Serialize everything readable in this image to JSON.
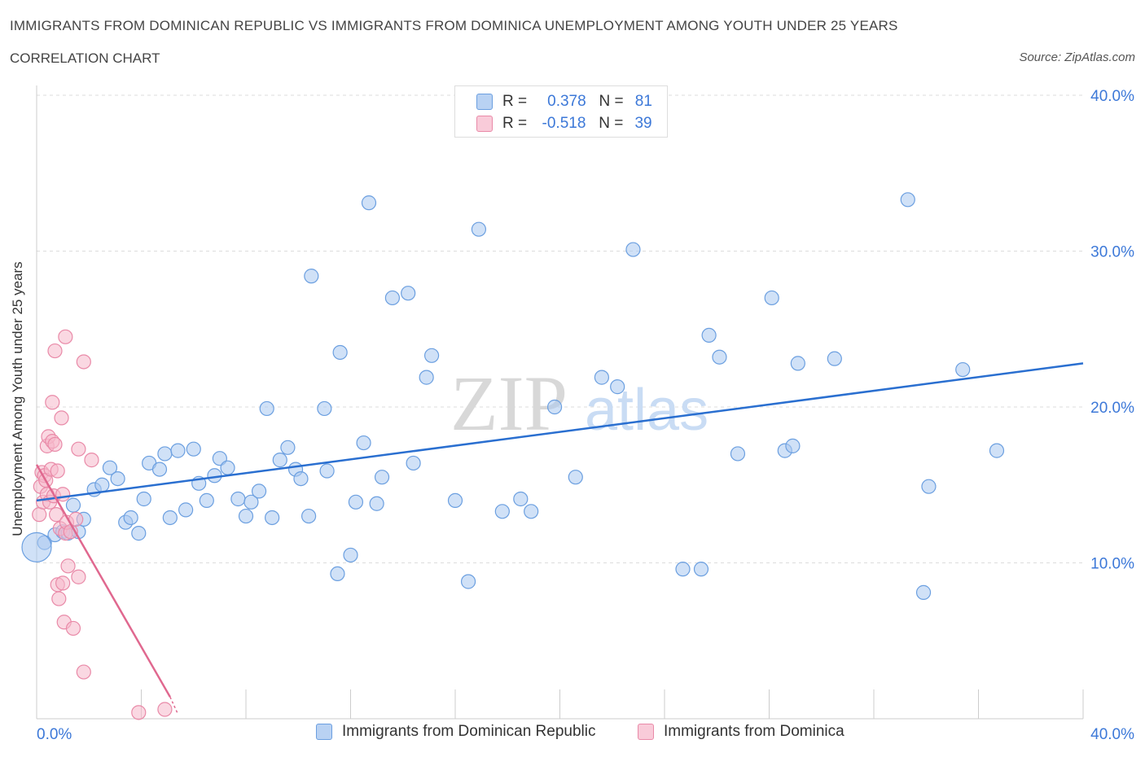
{
  "header": {
    "title": "IMMIGRANTS FROM DOMINICAN REPUBLIC VS IMMIGRANTS FROM DOMINICA UNEMPLOYMENT AMONG YOUTH UNDER 25 YEARS",
    "subtitle": "CORRELATION CHART",
    "source": "Source: ZipAtlas.com"
  },
  "watermark": {
    "zip": "ZIP",
    "atlas": "atlas"
  },
  "legend": {
    "series1": {
      "r_label": "R =",
      "r_value": "0.378",
      "n_label": "N =",
      "n_value": "81"
    },
    "series2": {
      "r_label": "R =",
      "r_value": "-0.518",
      "n_label": "N =",
      "n_value": "39"
    }
  },
  "colors": {
    "blue_fill": "#a9c8f0",
    "blue_stroke": "#6b9fe0",
    "blue_line": "#2a6fd0",
    "pink_fill": "#f6b8cb",
    "pink_stroke": "#e98aa8",
    "pink_line": "#e0688f",
    "axis_text": "#3c78d8"
  },
  "chart_data": {
    "type": "scatter",
    "title": "IMMIGRANTS FROM DOMINICAN REPUBLIC VS IMMIGRANTS FROM DOMINICA UNEMPLOYMENT AMONG YOUTH UNDER 25 YEARS",
    "xlabel": "",
    "ylabel": "Unemployment Among Youth under 25 years",
    "xlim": [
      0,
      40
    ],
    "ylim": [
      0,
      40
    ],
    "x_tick_labels": [
      "0.0%",
      "40.0%"
    ],
    "y_ticks": [
      10,
      20,
      30,
      40
    ],
    "y_tick_labels": [
      "10.0%",
      "20.0%",
      "30.0%",
      "40.0%"
    ],
    "grid": true,
    "series": [
      {
        "name": "Immigrants from Dominican Republic",
        "color": "#a9c8f0",
        "trend": {
          "x": [
            0,
            40
          ],
          "y": [
            14.0,
            22.8
          ]
        },
        "points": [
          {
            "x": 0.3,
            "y": 11.3
          },
          {
            "x": 0.7,
            "y": 11.8
          },
          {
            "x": 1.0,
            "y": 12.0
          },
          {
            "x": 1.2,
            "y": 11.9
          },
          {
            "x": 1.4,
            "y": 13.7
          },
          {
            "x": 1.6,
            "y": 12.0
          },
          {
            "x": 1.8,
            "y": 12.8
          },
          {
            "x": 2.2,
            "y": 14.7
          },
          {
            "x": 2.5,
            "y": 15.0
          },
          {
            "x": 2.8,
            "y": 16.1
          },
          {
            "x": 3.1,
            "y": 15.4
          },
          {
            "x": 3.4,
            "y": 12.6
          },
          {
            "x": 3.6,
            "y": 12.9
          },
          {
            "x": 3.9,
            "y": 11.9
          },
          {
            "x": 4.1,
            "y": 14.1
          },
          {
            "x": 4.3,
            "y": 16.4
          },
          {
            "x": 4.7,
            "y": 16.0
          },
          {
            "x": 4.9,
            "y": 17.0
          },
          {
            "x": 5.1,
            "y": 12.9
          },
          {
            "x": 5.4,
            "y": 17.2
          },
          {
            "x": 5.7,
            "y": 13.4
          },
          {
            "x": 6.0,
            "y": 17.3
          },
          {
            "x": 6.2,
            "y": 15.1
          },
          {
            "x": 6.5,
            "y": 14.0
          },
          {
            "x": 6.8,
            "y": 15.6
          },
          {
            "x": 7.0,
            "y": 16.7
          },
          {
            "x": 7.3,
            "y": 16.1
          },
          {
            "x": 7.7,
            "y": 14.1
          },
          {
            "x": 8.0,
            "y": 13.0
          },
          {
            "x": 8.2,
            "y": 13.9
          },
          {
            "x": 8.5,
            "y": 14.6
          },
          {
            "x": 8.8,
            "y": 19.9
          },
          {
            "x": 9.0,
            "y": 12.9
          },
          {
            "x": 9.3,
            "y": 16.6
          },
          {
            "x": 9.6,
            "y": 17.4
          },
          {
            "x": 9.9,
            "y": 16.0
          },
          {
            "x": 10.1,
            "y": 15.4
          },
          {
            "x": 10.4,
            "y": 13.0
          },
          {
            "x": 10.5,
            "y": 28.4
          },
          {
            "x": 11.0,
            "y": 19.9
          },
          {
            "x": 11.1,
            "y": 15.9
          },
          {
            "x": 11.5,
            "y": 9.3
          },
          {
            "x": 11.6,
            "y": 23.5
          },
          {
            "x": 12.0,
            "y": 10.5
          },
          {
            "x": 12.2,
            "y": 13.9
          },
          {
            "x": 12.5,
            "y": 17.7
          },
          {
            "x": 12.7,
            "y": 33.1
          },
          {
            "x": 13.0,
            "y": 13.8
          },
          {
            "x": 13.2,
            "y": 15.5
          },
          {
            "x": 13.6,
            "y": 27.0
          },
          {
            "x": 14.2,
            "y": 27.3
          },
          {
            "x": 14.4,
            "y": 16.4
          },
          {
            "x": 14.9,
            "y": 21.9
          },
          {
            "x": 15.1,
            "y": 23.3
          },
          {
            "x": 16.0,
            "y": 14.0
          },
          {
            "x": 16.5,
            "y": 8.8
          },
          {
            "x": 16.9,
            "y": 31.4
          },
          {
            "x": 17.8,
            "y": 13.3
          },
          {
            "x": 18.5,
            "y": 14.1
          },
          {
            "x": 18.9,
            "y": 13.3
          },
          {
            "x": 19.8,
            "y": 20.0
          },
          {
            "x": 20.6,
            "y": 15.5
          },
          {
            "x": 21.6,
            "y": 21.9
          },
          {
            "x": 22.2,
            "y": 21.3
          },
          {
            "x": 22.8,
            "y": 30.1
          },
          {
            "x": 24.7,
            "y": 9.6
          },
          {
            "x": 25.4,
            "y": 9.6
          },
          {
            "x": 25.7,
            "y": 24.6
          },
          {
            "x": 26.1,
            "y": 23.2
          },
          {
            "x": 26.8,
            "y": 17.0
          },
          {
            "x": 28.1,
            "y": 27.0
          },
          {
            "x": 28.6,
            "y": 17.2
          },
          {
            "x": 28.9,
            "y": 17.5
          },
          {
            "x": 29.1,
            "y": 22.8
          },
          {
            "x": 30.5,
            "y": 23.1
          },
          {
            "x": 33.3,
            "y": 33.3
          },
          {
            "x": 33.9,
            "y": 8.1
          },
          {
            "x": 34.1,
            "y": 14.9
          },
          {
            "x": 35.4,
            "y": 22.4
          },
          {
            "x": 36.7,
            "y": 17.2
          },
          {
            "x": 0.0,
            "y": 11.0
          }
        ]
      },
      {
        "name": "Immigrants from Dominica",
        "color": "#f6b8cb",
        "trend": {
          "x": [
            0,
            5.1
          ],
          "y": [
            16.3,
            1.4
          ],
          "dashed_to": {
            "x": 5.4,
            "y": 0.3
          }
        },
        "points": [
          {
            "x": 0.1,
            "y": 13.1
          },
          {
            "x": 0.15,
            "y": 14.9
          },
          {
            "x": 0.2,
            "y": 15.8
          },
          {
            "x": 0.25,
            "y": 13.9
          },
          {
            "x": 0.3,
            "y": 15.6
          },
          {
            "x": 0.35,
            "y": 15.3
          },
          {
            "x": 0.4,
            "y": 14.4
          },
          {
            "x": 0.4,
            "y": 17.5
          },
          {
            "x": 0.45,
            "y": 18.1
          },
          {
            "x": 0.5,
            "y": 13.9
          },
          {
            "x": 0.55,
            "y": 16.0
          },
          {
            "x": 0.6,
            "y": 17.8
          },
          {
            "x": 0.6,
            "y": 20.3
          },
          {
            "x": 0.65,
            "y": 14.3
          },
          {
            "x": 0.7,
            "y": 17.6
          },
          {
            "x": 0.7,
            "y": 23.6
          },
          {
            "x": 0.75,
            "y": 13.1
          },
          {
            "x": 0.8,
            "y": 8.6
          },
          {
            "x": 0.8,
            "y": 15.9
          },
          {
            "x": 0.85,
            "y": 7.7
          },
          {
            "x": 0.9,
            "y": 12.2
          },
          {
            "x": 0.95,
            "y": 19.3
          },
          {
            "x": 1.0,
            "y": 8.7
          },
          {
            "x": 1.0,
            "y": 14.4
          },
          {
            "x": 1.05,
            "y": 6.2
          },
          {
            "x": 1.1,
            "y": 11.9
          },
          {
            "x": 1.15,
            "y": 12.6
          },
          {
            "x": 1.2,
            "y": 9.8
          },
          {
            "x": 1.1,
            "y": 24.5
          },
          {
            "x": 1.3,
            "y": 12.0
          },
          {
            "x": 1.4,
            "y": 5.8
          },
          {
            "x": 1.5,
            "y": 12.8
          },
          {
            "x": 1.6,
            "y": 17.3
          },
          {
            "x": 1.6,
            "y": 9.1
          },
          {
            "x": 1.8,
            "y": 22.9
          },
          {
            "x": 1.8,
            "y": 3.0
          },
          {
            "x": 2.1,
            "y": 16.6
          },
          {
            "x": 3.9,
            "y": 0.4
          },
          {
            "x": 4.9,
            "y": 0.6
          }
        ]
      }
    ]
  },
  "bottom_legend": {
    "series1_label": "Immigrants from Dominican Republic",
    "series2_label": "Immigrants from Dominica"
  }
}
